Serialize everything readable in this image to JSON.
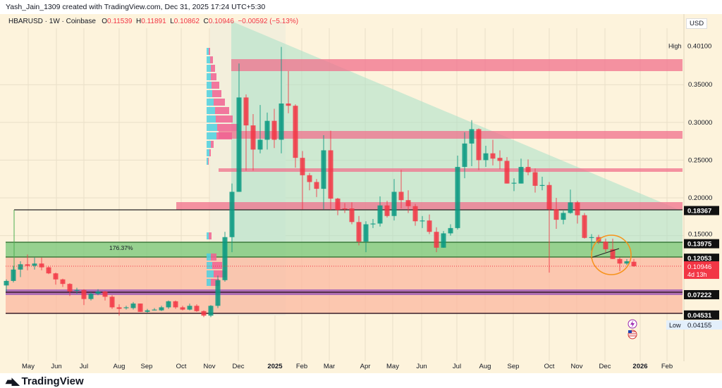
{
  "header": {
    "credit": "Yash_Jain_1309 created with TradingView.com, Dec 31, 2025 17:24 UTC+5:30",
    "symbol": "HBARUSD · 1W · Coinbase",
    "open_label": "O",
    "open": "0.11539",
    "high_label": "H",
    "high": "0.11891",
    "low_label": "L",
    "low": "0.10862",
    "close_label": "C",
    "close": "0.10946",
    "change": "−0.00592 (−5.13%)"
  },
  "currency": "USD",
  "annotation_pct": "176.37%",
  "footer": {
    "brand": "TradingView"
  },
  "colors": {
    "up": "#089981",
    "down": "#f23645",
    "background": "#fdf3dc",
    "zone_pink": "#f0708c",
    "zone_green": "#7cc87c",
    "zone_salmon": "#fbb8a0",
    "zone_purple": "#9b59b6",
    "triangle": "#a8e0c8",
    "circle": "#f7931a"
  },
  "icons": [
    "lightning-icon",
    "us-flag-icon",
    "tradingview-logo-icon"
  ],
  "chart_data": {
    "type": "candlestick",
    "title": "HBARUSD · 1W · Coinbase",
    "ylim": [
      0.03,
      0.42
    ],
    "grid": true,
    "x_ticks": [
      "May",
      "Jun",
      "Jul",
      "Aug",
      "Sep",
      "Oct",
      "Nov",
      "Dec",
      "2025",
      "Feb",
      "Mar",
      "Apr",
      "May",
      "Jun",
      "Jul",
      "Aug",
      "Sep",
      "Oct",
      "Nov",
      "Dec",
      "2026",
      "Feb"
    ],
    "y_ticks": [
      "0.35000",
      "0.30000",
      "0.25000",
      "0.20000",
      "0.15000"
    ],
    "y_tick_values": [
      0.35,
      0.3,
      0.25,
      0.2,
      0.15
    ],
    "price_labels": [
      {
        "label": "High",
        "value": "0.40100",
        "style": "high"
      },
      {
        "value": "0.18367",
        "style": "level"
      },
      {
        "value": "0.13975",
        "style": "level"
      },
      {
        "value": "0.12053",
        "style": "level"
      },
      {
        "value": "0.10946",
        "extra": "4d 13h",
        "style": "last"
      },
      {
        "value": "0.07222",
        "style": "level"
      },
      {
        "value": "0.04531",
        "style": "level"
      },
      {
        "label": "Low",
        "value": "0.04155",
        "style": "low"
      }
    ],
    "candles_ohlc": [
      [
        0.084,
        0.092,
        0.076,
        0.09
      ],
      [
        0.09,
        0.11,
        0.088,
        0.105
      ],
      [
        0.105,
        0.116,
        0.095,
        0.112
      ],
      [
        0.112,
        0.125,
        0.104,
        0.11
      ],
      [
        0.11,
        0.121,
        0.105,
        0.113
      ],
      [
        0.113,
        0.121,
        0.104,
        0.108
      ],
      [
        0.108,
        0.109,
        0.099,
        0.1
      ],
      [
        0.1,
        0.101,
        0.085,
        0.092
      ],
      [
        0.092,
        0.093,
        0.082,
        0.086
      ],
      [
        0.086,
        0.087,
        0.07,
        0.076
      ],
      [
        0.077,
        0.081,
        0.073,
        0.078
      ],
      [
        0.078,
        0.079,
        0.058,
        0.066
      ],
      [
        0.066,
        0.075,
        0.064,
        0.073
      ],
      [
        0.073,
        0.079,
        0.071,
        0.076
      ],
      [
        0.076,
        0.077,
        0.064,
        0.069
      ],
      [
        0.069,
        0.071,
        0.053,
        0.055
      ],
      [
        0.055,
        0.059,
        0.044,
        0.053
      ],
      [
        0.054,
        0.057,
        0.052,
        0.055
      ],
      [
        0.054,
        0.062,
        0.052,
        0.06
      ],
      [
        0.06,
        0.06,
        0.049,
        0.049
      ],
      [
        0.049,
        0.053,
        0.048,
        0.051
      ],
      [
        0.052,
        0.054,
        0.051,
        0.052
      ],
      [
        0.051,
        0.057,
        0.05,
        0.055
      ],
      [
        0.055,
        0.064,
        0.053,
        0.063
      ],
      [
        0.063,
        0.064,
        0.053,
        0.055
      ],
      [
        0.055,
        0.057,
        0.051,
        0.052
      ],
      [
        0.052,
        0.06,
        0.051,
        0.057
      ],
      [
        0.057,
        0.059,
        0.049,
        0.05
      ],
      [
        0.05,
        0.051,
        0.042,
        0.044
      ],
      [
        0.044,
        0.058,
        0.042,
        0.057
      ],
      [
        0.057,
        0.097,
        0.054,
        0.091
      ],
      [
        0.091,
        0.155,
        0.089,
        0.148
      ],
      [
        0.148,
        0.219,
        0.128,
        0.208
      ],
      [
        0.208,
        0.378,
        0.208,
        0.333
      ],
      [
        0.333,
        0.337,
        0.236,
        0.296
      ],
      [
        0.296,
        0.311,
        0.236,
        0.264
      ],
      [
        0.264,
        0.323,
        0.259,
        0.277
      ],
      [
        0.277,
        0.313,
        0.264,
        0.302
      ],
      [
        0.302,
        0.318,
        0.266,
        0.277
      ],
      [
        0.277,
        0.4,
        0.259,
        0.325
      ],
      [
        0.325,
        0.368,
        0.312,
        0.322
      ],
      [
        0.322,
        0.324,
        0.24,
        0.253
      ],
      [
        0.253,
        0.262,
        0.185,
        0.23
      ],
      [
        0.23,
        0.233,
        0.21,
        0.221
      ],
      [
        0.221,
        0.225,
        0.201,
        0.212
      ],
      [
        0.212,
        0.283,
        0.185,
        0.263
      ],
      [
        0.263,
        0.289,
        0.184,
        0.199
      ],
      [
        0.199,
        0.2,
        0.177,
        0.184
      ],
      [
        0.186,
        0.193,
        0.18,
        0.185
      ],
      [
        0.186,
        0.194,
        0.165,
        0.168
      ],
      [
        0.168,
        0.176,
        0.137,
        0.142
      ],
      [
        0.142,
        0.169,
        0.128,
        0.165
      ],
      [
        0.165,
        0.172,
        0.16,
        0.166
      ],
      [
        0.166,
        0.202,
        0.162,
        0.19
      ],
      [
        0.19,
        0.196,
        0.174,
        0.176
      ],
      [
        0.176,
        0.225,
        0.17,
        0.208
      ],
      [
        0.208,
        0.237,
        0.186,
        0.197
      ],
      [
        0.197,
        0.21,
        0.18,
        0.189
      ],
      [
        0.189,
        0.192,
        0.163,
        0.169
      ],
      [
        0.17,
        0.176,
        0.16,
        0.17
      ],
      [
        0.17,
        0.178,
        0.152,
        0.155
      ],
      [
        0.155,
        0.161,
        0.128,
        0.134
      ],
      [
        0.134,
        0.156,
        0.134,
        0.153
      ],
      [
        0.153,
        0.165,
        0.15,
        0.16
      ],
      [
        0.16,
        0.256,
        0.158,
        0.241
      ],
      [
        0.241,
        0.287,
        0.226,
        0.272
      ],
      [
        0.272,
        0.303,
        0.242,
        0.291
      ],
      [
        0.291,
        0.292,
        0.237,
        0.25
      ],
      [
        0.25,
        0.269,
        0.241,
        0.259
      ],
      [
        0.259,
        0.277,
        0.243,
        0.252
      ],
      [
        0.253,
        0.263,
        0.238,
        0.249
      ],
      [
        0.249,
        0.254,
        0.219,
        0.219
      ],
      [
        0.219,
        0.226,
        0.209,
        0.22
      ],
      [
        0.219,
        0.252,
        0.219,
        0.241
      ],
      [
        0.241,
        0.251,
        0.23,
        0.234
      ],
      [
        0.234,
        0.239,
        0.207,
        0.216
      ],
      [
        0.217,
        0.228,
        0.21,
        0.217
      ],
      [
        0.217,
        0.221,
        0.101,
        0.185
      ],
      [
        0.185,
        0.2,
        0.159,
        0.171
      ],
      [
        0.171,
        0.183,
        0.165,
        0.18
      ],
      [
        0.18,
        0.211,
        0.179,
        0.194
      ],
      [
        0.194,
        0.196,
        0.166,
        0.177
      ],
      [
        0.177,
        0.18,
        0.146,
        0.147
      ],
      [
        0.148,
        0.152,
        0.13,
        0.148
      ],
      [
        0.148,
        0.151,
        0.139,
        0.142
      ],
      [
        0.142,
        0.146,
        0.128,
        0.132
      ],
      [
        0.132,
        0.146,
        0.119,
        0.119
      ],
      [
        0.119,
        0.121,
        0.103,
        0.113
      ],
      [
        0.113,
        0.119,
        0.111,
        0.116
      ],
      [
        0.11539,
        0.11891,
        0.10862,
        0.10946
      ]
    ]
  }
}
